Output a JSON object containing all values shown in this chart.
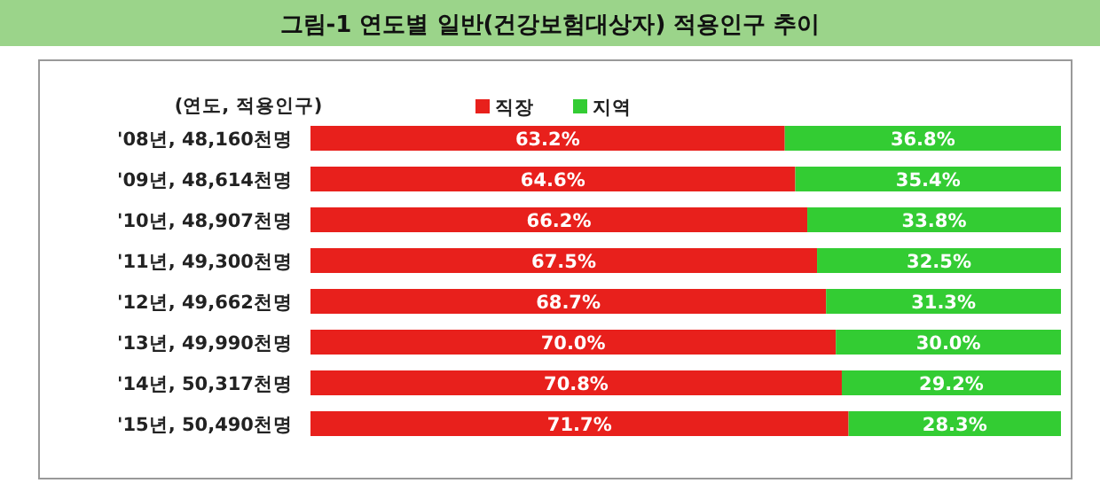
{
  "chart_data": {
    "type": "bar",
    "orientation": "horizontal",
    "stacked": true,
    "title": "그림-1  연도별 일반(건강보험대상자) 적용인구 추이",
    "annotations": [
      "(연도, 적용인구)"
    ],
    "legend": "top",
    "categories": [
      "'08년, 48,160천명",
      "'09년, 48,614천명",
      "'10년, 48,907천명",
      "'11년, 49,300천명",
      "'12년, 49,662천명",
      "'13년, 49,990천명",
      "'14년, 50,317천명",
      "'15년, 50,490천명"
    ],
    "xlim": [
      0,
      100
    ],
    "tick_labels": "y",
    "series": [
      {
        "name": "직장",
        "color": "#e8201c",
        "values": [
          63.2,
          64.6,
          66.2,
          67.5,
          68.7,
          70.0,
          70.8,
          71.7
        ],
        "value_labels": [
          "63.2%",
          "64.6%",
          "66.2%",
          "67.5%",
          "68.7%",
          "70.0%",
          "70.8%",
          "71.7%"
        ]
      },
      {
        "name": "지역",
        "color": "#33cc33",
        "values": [
          36.8,
          35.4,
          33.8,
          32.5,
          31.3,
          30.0,
          29.2,
          28.3
        ],
        "value_labels": [
          "36.8%",
          "35.4%",
          "33.8%",
          "32.5%",
          "31.3%",
          "30.0%",
          "29.2%",
          "28.3%"
        ]
      }
    ]
  }
}
